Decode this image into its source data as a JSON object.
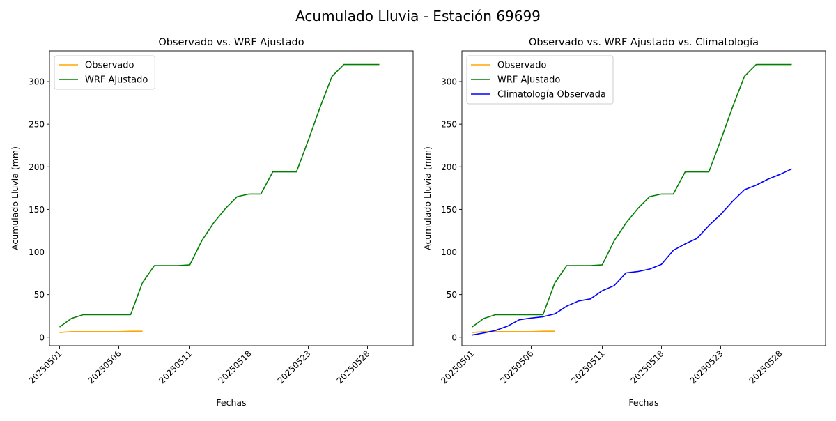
{
  "figure_title": "Acumulado Lluvia - Estación 69699",
  "colors": {
    "observado": "#ffa500",
    "wrf": "#008000",
    "clima": "#0000ff"
  },
  "chart_data": [
    {
      "type": "line",
      "title": "Observado vs. WRF Ajustado",
      "xlabel": "Fechas",
      "ylabel": "Acumulado Lluvia (mm)",
      "xlim": [
        -0.85,
        29.85
      ],
      "ylim": [
        -10,
        336
      ],
      "yticks": [
        0,
        50,
        100,
        150,
        200,
        250,
        300
      ],
      "xticks": [
        {
          "i": 0,
          "label": "20250501"
        },
        {
          "i": 5,
          "label": "20250506"
        },
        {
          "i": 11,
          "label": "20250511"
        },
        {
          "i": 16,
          "label": "20250518"
        },
        {
          "i": 21,
          "label": "20250523"
        },
        {
          "i": 26,
          "label": "20250528"
        }
      ],
      "legend_loc": "upper-left",
      "series": [
        {
          "name": "Observado",
          "color_key": "observado",
          "x": [
            0,
            1,
            2,
            3,
            4,
            5,
            6,
            7
          ],
          "y": [
            5.5,
            6.5,
            6.5,
            6.5,
            6.5,
            6.5,
            7,
            7
          ]
        },
        {
          "name": "WRF Ajustado",
          "color_key": "wrf",
          "x": [
            0,
            1,
            2,
            3,
            4,
            5,
            6,
            7,
            8,
            9,
            10,
            11,
            12,
            13,
            14,
            15,
            16,
            17,
            18,
            19,
            20,
            21,
            22,
            23,
            24,
            25,
            26,
            27
          ],
          "y": [
            12,
            22,
            26.5,
            26.5,
            26.5,
            26.5,
            26.5,
            64,
            84,
            84,
            84,
            85,
            113,
            134,
            151,
            165,
            168,
            168,
            194,
            194,
            194,
            231,
            270,
            306,
            320,
            320,
            320,
            320
          ]
        }
      ]
    },
    {
      "type": "line",
      "title": "Observado vs. WRF Ajustado vs. Climatología",
      "xlabel": "Fechas",
      "ylabel": "Acumulado Lluvia (mm)",
      "xlim": [
        -0.85,
        29.85
      ],
      "ylim": [
        -10,
        336
      ],
      "yticks": [
        0,
        50,
        100,
        150,
        200,
        250,
        300
      ],
      "xticks": [
        {
          "i": 0,
          "label": "20250501"
        },
        {
          "i": 5,
          "label": "20250506"
        },
        {
          "i": 11,
          "label": "20250511"
        },
        {
          "i": 16,
          "label": "20250518"
        },
        {
          "i": 21,
          "label": "20250523"
        },
        {
          "i": 26,
          "label": "20250528"
        }
      ],
      "legend_loc": "upper-left",
      "series": [
        {
          "name": "Observado",
          "color_key": "observado",
          "x": [
            0,
            1,
            2,
            3,
            4,
            5,
            6,
            7
          ],
          "y": [
            5.5,
            6.5,
            6.5,
            6.5,
            6.5,
            6.5,
            7,
            7
          ]
        },
        {
          "name": "WRF Ajustado",
          "color_key": "wrf",
          "x": [
            0,
            1,
            2,
            3,
            4,
            5,
            6,
            7,
            8,
            9,
            10,
            11,
            12,
            13,
            14,
            15,
            16,
            17,
            18,
            19,
            20,
            21,
            22,
            23,
            24,
            25,
            26,
            27
          ],
          "y": [
            12,
            22,
            26.5,
            26.5,
            26.5,
            26.5,
            26.5,
            64,
            84,
            84,
            84,
            85,
            113,
            134,
            151,
            165,
            168,
            168,
            194,
            194,
            194,
            231,
            270,
            306,
            320,
            320,
            320,
            320
          ]
        },
        {
          "name": "Climatología Observada",
          "color_key": "clima",
          "x": [
            0,
            1,
            2,
            3,
            4,
            5,
            6,
            7,
            8,
            9,
            10,
            11,
            12,
            13,
            14,
            15,
            16,
            17,
            18,
            19,
            20,
            21,
            22,
            23,
            24,
            25,
            26,
            27
          ],
          "y": [
            2.5,
            5,
            8,
            13,
            20.5,
            22.5,
            24,
            27.5,
            36.5,
            42.5,
            45,
            54.5,
            60.5,
            75.5,
            77,
            80,
            85.5,
            102,
            109.5,
            116,
            131,
            144,
            159.5,
            173,
            178.5,
            185.5,
            191,
            197.5
          ]
        }
      ]
    }
  ]
}
